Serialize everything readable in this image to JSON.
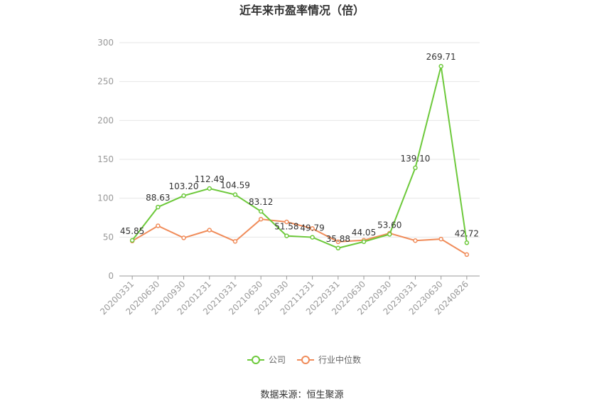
{
  "chart_data": {
    "type": "line",
    "title": "近年来市盈率情况（倍）",
    "categories": [
      "20200331",
      "20200630",
      "20200930",
      "20201231",
      "20210331",
      "20210630",
      "20210930",
      "20211231",
      "20220331",
      "20220630",
      "20220930",
      "20230331",
      "20230630",
      "20240826"
    ],
    "series": [
      {
        "name": "公司",
        "color": "#6dc93b",
        "values": [
          45.85,
          88.63,
          103.2,
          112.49,
          104.59,
          83.12,
          51.58,
          49.79,
          35.88,
          44.05,
          53.6,
          139.1,
          269.71,
          42.72
        ],
        "labels": [
          "45.85",
          "88.63",
          "103.20",
          "112.49",
          "104.59",
          "83.12",
          "51.58",
          "49.79",
          "35.88",
          "44.05",
          "53.60",
          "139.10",
          "269.71",
          "42.72"
        ]
      },
      {
        "name": "行业中位数",
        "color": "#f08c5a",
        "values": [
          45,
          64.5,
          49,
          59,
          44.5,
          73,
          69.5,
          61,
          44,
          46,
          55,
          45.5,
          47.5,
          27.5
        ]
      }
    ],
    "ylim": [
      0,
      300
    ],
    "yticks": [
      0,
      50,
      100,
      150,
      200,
      250,
      300
    ],
    "grid": true,
    "legend": "bottom-center",
    "source": "数据来源：恒生聚源"
  }
}
